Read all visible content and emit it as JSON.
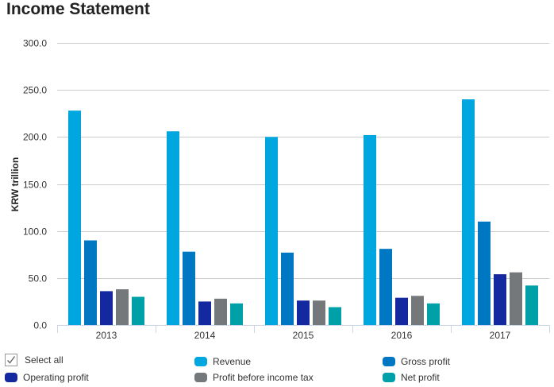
{
  "title": "Income Statement",
  "chart_data": {
    "type": "bar",
    "title": "Income Statement",
    "xlabel": "",
    "ylabel": "KRW trillion",
    "ylim": [
      0,
      300
    ],
    "yticks": [
      "0.0",
      "50.0",
      "100.0",
      "150.0",
      "200.0",
      "250.0",
      "300.0"
    ],
    "ytick_values": [
      0,
      50,
      100,
      150,
      200,
      250,
      300
    ],
    "grid": true,
    "categories": [
      "2013",
      "2014",
      "2015",
      "2016",
      "2017"
    ],
    "series": [
      {
        "name": "Revenue",
        "color": "#00a6e0",
        "values": [
          228,
          206,
          200,
          202,
          240
        ]
      },
      {
        "name": "Gross profit",
        "color": "#0077c2",
        "values": [
          90,
          78,
          77,
          81,
          110
        ]
      },
      {
        "name": "Operating profit",
        "color": "#1428a0",
        "values": [
          36,
          25,
          26,
          29,
          54
        ]
      },
      {
        "name": "Profit before income tax",
        "color": "#75787b",
        "values": [
          38,
          28,
          26,
          31,
          56
        ]
      },
      {
        "name": "Net profit",
        "color": "#00a0a8",
        "values": [
          30,
          23,
          19,
          23,
          42
        ]
      }
    ],
    "legend_position": "bottom"
  },
  "legend": {
    "select_all_label": "Select all",
    "select_all_checked": true,
    "items": [
      {
        "label": "Revenue",
        "color": "#00a6e0"
      },
      {
        "label": "Gross profit",
        "color": "#0077c2"
      },
      {
        "label": "Operating profit",
        "color": "#1428a0"
      },
      {
        "label": "Profit before income tax",
        "color": "#75787b"
      },
      {
        "label": "Net profit",
        "color": "#00a0a8"
      }
    ]
  }
}
